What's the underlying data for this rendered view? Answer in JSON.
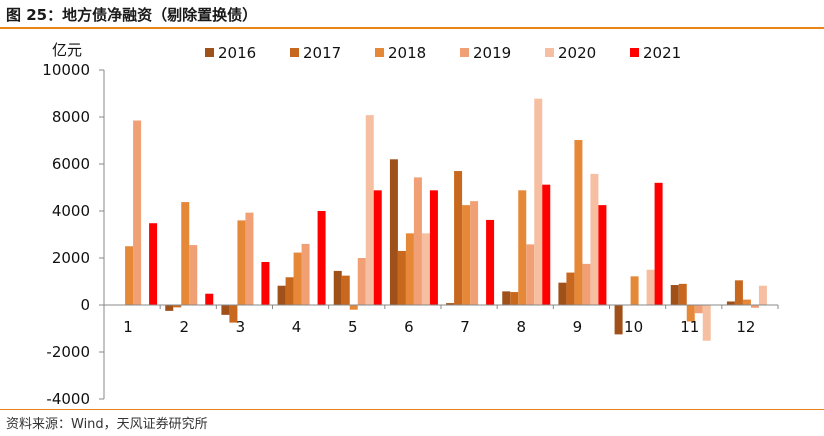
{
  "title": "图 25：地方债净融资（剔除置换债）",
  "source": "资料来源：Wind，天风证券研究所",
  "chart_data": {
    "type": "bar",
    "unit": "亿元",
    "categories": [
      "1",
      "2",
      "3",
      "4",
      "5",
      "6",
      "7",
      "8",
      "9",
      "10",
      "11",
      "12"
    ],
    "ylim": [
      -4000,
      10000
    ],
    "yticks": [
      "10000",
      "8000",
      "6000",
      "4000",
      "2000",
      "0",
      "-2000",
      "-4000"
    ],
    "yticks_values": [
      10000,
      8000,
      6000,
      4000,
      2000,
      0,
      -2000,
      -4000
    ],
    "legend_position": "top",
    "grid": false,
    "series": [
      {
        "name": "2016",
        "color": "#a0511a",
        "values": [
          0,
          -250,
          -420,
          820,
          1450,
          6200,
          80,
          580,
          950,
          -1250,
          850,
          150
        ]
      },
      {
        "name": "2017",
        "color": "#c8681e",
        "values": [
          0,
          -100,
          -750,
          1180,
          1250,
          2300,
          5700,
          550,
          1380,
          0,
          900,
          1050
        ]
      },
      {
        "name": "2018",
        "color": "#e58938",
        "values": [
          2500,
          4380,
          3600,
          2230,
          -200,
          3050,
          4250,
          4880,
          7020,
          1220,
          -700,
          230
        ]
      },
      {
        "name": "2019",
        "color": "#f0a074",
        "values": [
          7850,
          2550,
          3930,
          2600,
          2000,
          5430,
          4420,
          2580,
          1750,
          0,
          -350,
          -120
        ]
      },
      {
        "name": "2020",
        "color": "#f6bfa2",
        "values": [
          0,
          0,
          0,
          0,
          8080,
          3050,
          0,
          8780,
          5580,
          1500,
          -1520,
          820
        ]
      },
      {
        "name": "2021",
        "color": "#ff0000",
        "values": [
          3480,
          480,
          1830,
          4000,
          4880,
          4880,
          3620,
          5120,
          4250,
          5200,
          0,
          0
        ]
      }
    ]
  }
}
